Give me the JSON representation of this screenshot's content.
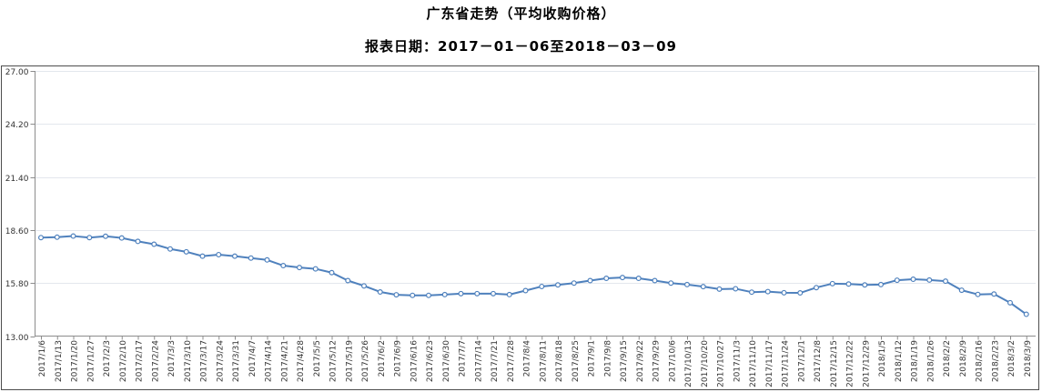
{
  "header": {
    "title": "广东省走势（平均收购价格）",
    "subtitle": "报表日期：2017－01－06至2018－03－09"
  },
  "chart_data": {
    "type": "line",
    "title": "广东省走势（平均收购价格）",
    "xlabel": "",
    "ylabel": "",
    "ylim": [
      13.0,
      27.0
    ],
    "yticks": [
      "13.00",
      "15.80",
      "18.60",
      "21.40",
      "24.20",
      "27.00"
    ],
    "grid": "horizontal",
    "legend": "none",
    "line_color": "#4f81bd",
    "marker": "open-circle",
    "marker_fill": "#ffffff",
    "gridline_color": "#e3e7ed",
    "axis_color": "#8c8c8c",
    "frame_color": "#4d4d4d",
    "label_color": "#333333",
    "categories": [
      "2017/1/6",
      "2017/1/13",
      "2017/1/20",
      "2017/1/27",
      "2017/2/3",
      "2017/2/10",
      "2017/2/17",
      "2017/2/24",
      "2017/3/3",
      "2017/3/10",
      "2017/3/17",
      "2017/3/24",
      "2017/3/31",
      "2017/4/7",
      "2017/4/14",
      "2017/4/21",
      "2017/4/28",
      "2017/5/5",
      "2017/5/12",
      "2017/5/19",
      "2017/5/26",
      "2017/6/2",
      "2017/6/9",
      "2017/6/16",
      "2017/6/23",
      "2017/6/30",
      "2017/7/7",
      "2017/7/14",
      "2017/7/21",
      "2017/7/28",
      "2017/8/4",
      "2017/8/11",
      "2017/8/18",
      "2017/8/25",
      "2017/9/1",
      "2017/9/8",
      "2017/9/15",
      "2017/9/22",
      "2017/9/29",
      "2017/10/6",
      "2017/10/13",
      "2017/10/20",
      "2017/10/27",
      "2017/11/3",
      "2017/11/10",
      "2017/11/17",
      "2017/11/24",
      "2017/12/1",
      "2017/12/8",
      "2017/12/15",
      "2017/12/22",
      "2017/12/29",
      "2018/1/5",
      "2018/1/12",
      "2018/1/19",
      "2018/1/26",
      "2018/2/2",
      "2018/2/9",
      "2018/2/16",
      "2018/2/23",
      "2018/3/2",
      "2018/3/9"
    ],
    "series": [
      {
        "name": "平均收购价格",
        "values": [
          18.2,
          18.22,
          18.28,
          18.2,
          18.27,
          18.18,
          18.0,
          17.85,
          17.6,
          17.45,
          17.22,
          17.3,
          17.22,
          17.12,
          17.02,
          16.72,
          16.62,
          16.55,
          16.35,
          15.93,
          15.65,
          15.33,
          15.18,
          15.15,
          15.15,
          15.19,
          15.24,
          15.24,
          15.24,
          15.19,
          15.4,
          15.62,
          15.7,
          15.8,
          15.93,
          16.05,
          16.09,
          16.05,
          15.93,
          15.8,
          15.72,
          15.61,
          15.48,
          15.5,
          15.32,
          15.35,
          15.29,
          15.28,
          15.56,
          15.77,
          15.75,
          15.7,
          15.72,
          15.95,
          16.0,
          15.96,
          15.9,
          15.42,
          15.2,
          15.22,
          14.76,
          14.15
        ]
      }
    ]
  }
}
